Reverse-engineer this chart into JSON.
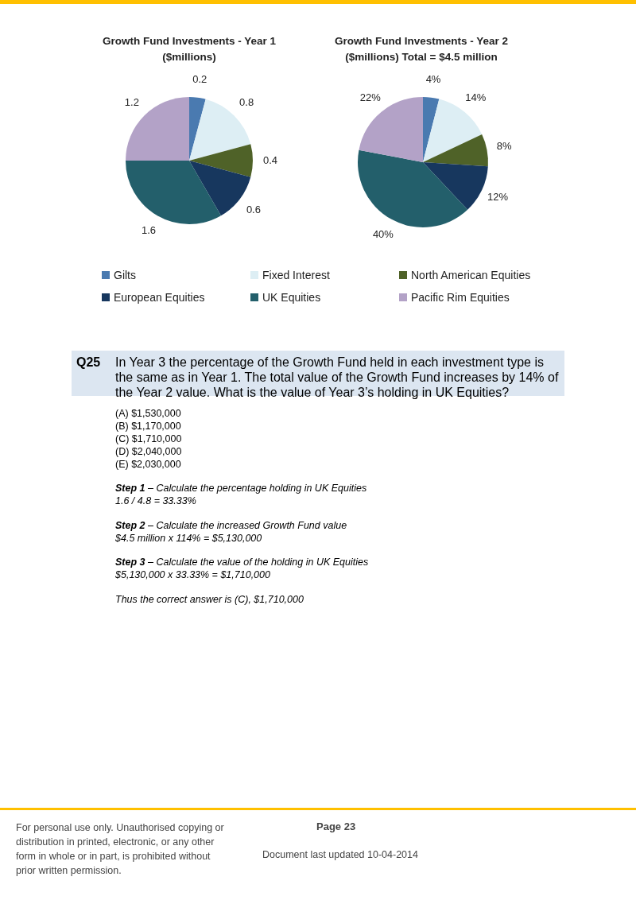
{
  "chart_data": {
    "type": "pie",
    "categories": [
      "Gilts",
      "Fixed Interest",
      "North American Equities",
      "European Equities",
      "UK Equities",
      "Pacific Rim Equities"
    ],
    "colors": [
      "#4a7ab0",
      "#ddeef4",
      "#4f6228",
      "#17375e",
      "#235f6b",
      "#b3a2c7"
    ],
    "series": [
      {
        "name": "Growth Fund Investments - Year 1 ($millions)",
        "values": [
          0.2,
          0.8,
          0.4,
          0.6,
          1.6,
          1.2
        ]
      },
      {
        "name": "Growth Fund Investments - Year 2 ($millions) Total = $4.5 million",
        "values": [
          4,
          14,
          8,
          12,
          40,
          22
        ],
        "value_labels": [
          "4%",
          "14%",
          "8%",
          "12%",
          "40%",
          "22%"
        ]
      }
    ],
    "data_labels": true,
    "legend": "bottom",
    "annotations": [
      "Q25",
      "In Year 3 the percentage of the Growth Fund held in each investment type is the same as in Year 1. The total value of the Growth Fund increases by 14% of the Year 2 value. What is the value of Year 3’s holding in UK Equities?",
      "(A) $1,530,000",
      "(B) $1,170,000",
      "(C) $1,710,000",
      "(D) $2,040,000",
      "(E) $2,030,000",
      "Step 1 – Calculate the percentage holding in UK Equities",
      "1.6 / 4.8 = 33.33%",
      "Step 2 – Calculate the increased Growth Fund value",
      "$4.5 million x 114% = $5,130,000",
      "Step 3 – Calculate the value of the holding in UK Equities",
      "$5,130,000 x 33.33% = $1,710,000",
      "Thus the correct answer is (C), $1,710,000",
      "For personal use only. Unauthorised copying or distribution in printed, electronic, or any other form in whole or in part, is prohibited without prior written permission.",
      "Page 23",
      "Document last updated 10-04-2014"
    ]
  }
}
